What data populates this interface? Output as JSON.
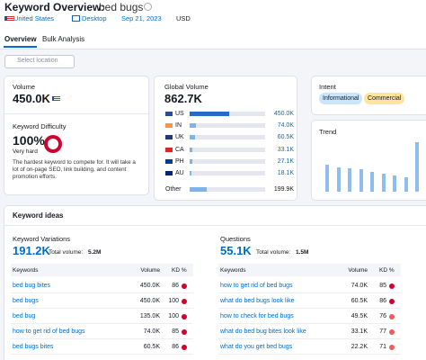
{
  "header": {
    "title": "Keyword Overview:",
    "keyword": "bed bugs"
  },
  "filters": {
    "database": "United States",
    "device": "Desktop",
    "date": "Sep 21, 2023",
    "currency": "USD"
  },
  "tabs": [
    "Overview",
    "Bulk Analysis"
  ],
  "location_placeholder": "Select location",
  "volume": {
    "label": "Volume",
    "value": "450.0K"
  },
  "difficulty": {
    "label": "Keyword Difficulty",
    "value": 100,
    "value_label": "100%",
    "level": "Very hard",
    "description": "The hardest keyword to compete for. It will take a lot of on-page SEO, link building, and content promotion efforts."
  },
  "global_volume": {
    "label": "Global Volume",
    "total": {
      "value": 862700,
      "label": "862.7K"
    },
    "countries": [
      {
        "code": "US",
        "volume": 450000,
        "label": "450.0K"
      },
      {
        "code": "IN",
        "volume": 74000,
        "label": "74.0K"
      },
      {
        "code": "UK",
        "volume": 60500,
        "label": "60.5K"
      },
      {
        "code": "CA",
        "volume": 33100,
        "label": "33.1K"
      },
      {
        "code": "PH",
        "volume": 27100,
        "label": "27.1K"
      },
      {
        "code": "AU",
        "volume": 18100,
        "label": "18.1K"
      },
      {
        "code": "Other",
        "volume": 199900,
        "label": "199.9K"
      }
    ]
  },
  "intent": {
    "label": "Intent",
    "tags": [
      "Informational",
      "Commercial"
    ]
  },
  "trend": {
    "label": "Trend",
    "values": [
      55,
      50,
      48,
      45,
      40,
      36,
      33,
      30,
      100
    ]
  },
  "keyword_ideas": {
    "title": "Keyword ideas",
    "sections": [
      {
        "title": "Keyword Variations",
        "count": "191.2K",
        "total_label": "Total volume:",
        "total": "5.2M",
        "columns": [
          "Keywords",
          "Volume",
          "KD %"
        ],
        "rows": [
          [
            "bed bug bites",
            "450.0K",
            86
          ],
          [
            "bed bugs",
            "450.0K",
            100
          ],
          [
            "bed bug",
            "135.0K",
            100
          ],
          [
            "how to get rid of bed bugs",
            "74.0K",
            85
          ],
          [
            "bed bugs bites",
            "60.5K",
            86
          ]
        ]
      },
      {
        "title": "Questions",
        "count": "55.1K",
        "total_label": "Total volume:",
        "total": "1.5M",
        "columns": [
          "Keywords",
          "Volume",
          "KD %"
        ],
        "rows": [
          [
            "how to get rid of bed bugs",
            "74.0K",
            85
          ],
          [
            "what do bed bugs look like",
            "60.5K",
            86
          ],
          [
            "how to check for bed bugs",
            "49.5K",
            76
          ],
          [
            "what do bed bug bites look like",
            "33.1K",
            77
          ],
          [
            "what do you get bed bugs",
            "22.2K",
            71
          ]
        ]
      }
    ]
  }
}
